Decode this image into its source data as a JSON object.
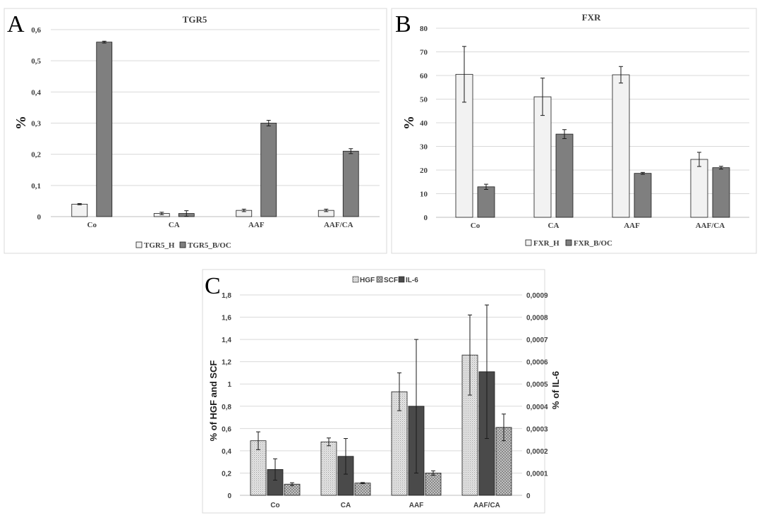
{
  "colors": {
    "light_bar": "#f2f2f2",
    "dark_bar": "#7f7f7f",
    "darker_bar": "#4a4a4a",
    "bar_edge": "#1a1a1a"
  },
  "chart_data": [
    {
      "panel": "A",
      "type": "bar",
      "title": "TGR5",
      "ylabel": "%",
      "xlabel": "",
      "categories": [
        "Co",
        "CA",
        "AAF",
        "AAF/CA"
      ],
      "ylim": [
        0,
        0.6
      ],
      "yticks": [
        "0",
        "0,1",
        "0,2",
        "0,3",
        "0,4",
        "0,5",
        "0,6"
      ],
      "series": [
        {
          "name": "TGR5_H",
          "values": [
            0.04,
            0.01,
            0.02,
            0.02
          ],
          "errors": [
            0.002,
            0.004,
            0.004,
            0.004
          ]
        },
        {
          "name": "TGR5_B/OC",
          "values": [
            0.56,
            0.01,
            0.3,
            0.21
          ],
          "errors": [
            0.003,
            0.009,
            0.009,
            0.008
          ]
        }
      ],
      "legend": "bottom"
    },
    {
      "panel": "B",
      "type": "bar",
      "title": "FXR",
      "ylabel": "%",
      "xlabel": "",
      "categories": [
        "Co",
        "CA",
        "AAF",
        "AAF/CA"
      ],
      "ylim": [
        0,
        80
      ],
      "yticks": [
        "0",
        "10",
        "20",
        "30",
        "40",
        "50",
        "60",
        "70",
        "80"
      ],
      "series": [
        {
          "name": "FXR_H",
          "values": [
            60.5,
            51.0,
            60.3,
            24.5
          ],
          "errors": [
            11.8,
            7.9,
            3.5,
            3.0
          ]
        },
        {
          "name": "FXR_B/OC",
          "values": [
            12.9,
            35.2,
            18.6,
            21.0
          ],
          "errors": [
            1.1,
            1.9,
            0.4,
            0.6
          ]
        }
      ],
      "legend": "bottom"
    },
    {
      "panel": "C",
      "type": "bar",
      "title": "",
      "ylabel": "% of HGF and SCF",
      "y2label": "% of IL-6",
      "xlabel": "",
      "categories": [
        "Co",
        "CA",
        "AAF",
        "AAF/CA"
      ],
      "ylim": [
        0,
        1.8
      ],
      "y2lim": [
        0,
        0.0009
      ],
      "yticks": [
        "0",
        "0,2",
        "0,4",
        "0,6",
        "0,8",
        "1",
        "1,2",
        "1,4",
        "1,6",
        "1,8"
      ],
      "y2ticks": [
        "0",
        "0,0001",
        "0,0002",
        "0,0003",
        "0,0004",
        "0,0005",
        "0,0006",
        "0,0007",
        "0,0008",
        "0,0009"
      ],
      "series": [
        {
          "name": "HGF",
          "axis": "left",
          "values": [
            0.49,
            0.48,
            0.93,
            1.26
          ],
          "errors": [
            0.08,
            0.035,
            0.17,
            0.36
          ]
        },
        {
          "name": "IL-6",
          "axis": "right",
          "values": [
            0.000116,
            0.000175,
            0.0004,
            0.000555
          ],
          "errors": [
            4.8e-05,
            8e-05,
            0.0003,
            0.0003
          ]
        },
        {
          "name": "SCF",
          "axis": "left",
          "values": [
            0.1,
            0.11,
            0.2,
            0.61
          ],
          "errors": [
            0.013,
            0.005,
            0.02,
            0.12
          ]
        }
      ],
      "legend_order": [
        "HGF",
        "SCF",
        "IL-6"
      ],
      "legend": "top"
    }
  ]
}
